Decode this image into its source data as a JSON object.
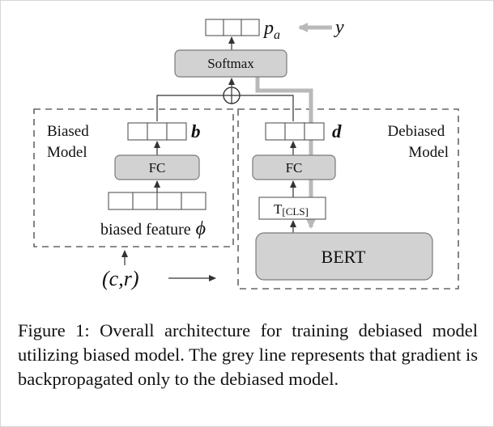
{
  "diagram": {
    "softmax_label": "Softmax",
    "prob_label_p": "p",
    "prob_label_sub": "a",
    "target_label": "y",
    "combine_symbol": "⊕",
    "biased_model_label_line1": "Biased",
    "biased_model_label_line2": "Model",
    "debiased_model_label_line1": "Debiased",
    "debiased_model_label_line2": "Model",
    "vector_b_label": "b",
    "vector_d_label": "d",
    "fc_left_label": "FC",
    "fc_right_label": "FC",
    "tcls_label_T": "T",
    "tcls_label_sub": "[CLS]",
    "bert_label": "BERT",
    "biased_feature_label": "biased feature",
    "phi_symbol": "ϕ",
    "input_label": "(c,r)"
  },
  "caption": {
    "text": "Figure 1: Overall architecture for training debiased model utilizing biased model. The grey line represents that gradient is backpropagated only to the debiased model."
  }
}
